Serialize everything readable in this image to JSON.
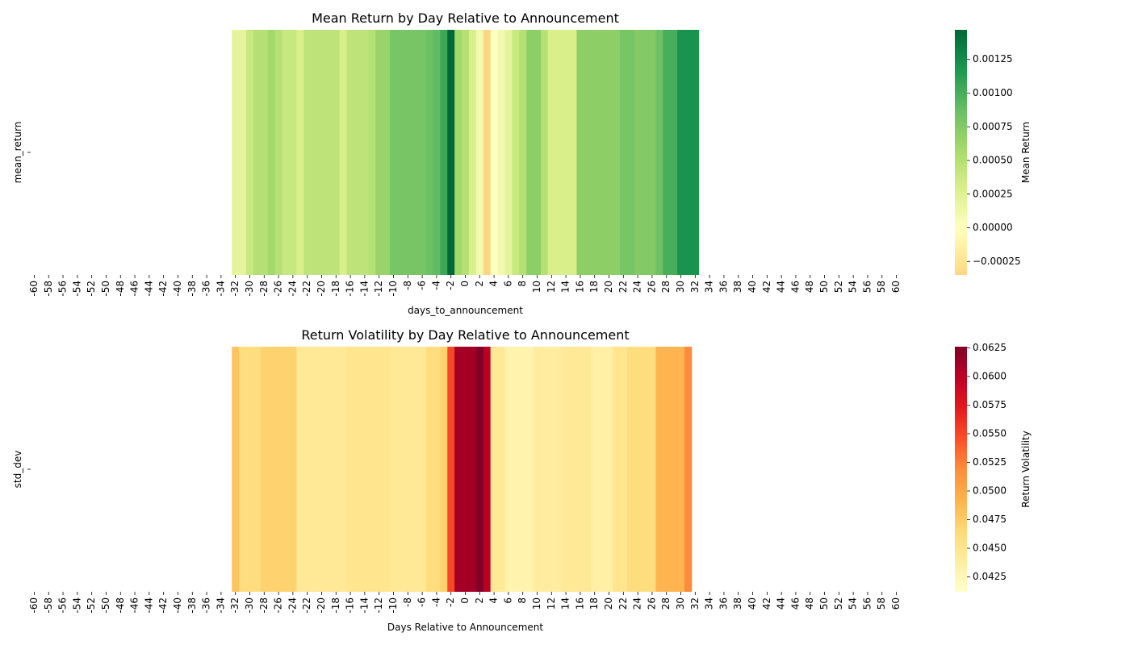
{
  "chart_data": [
    {
      "type": "heatmap",
      "title": "Mean Return by Day Relative to Announcement",
      "xlabel": "days_to_announcement",
      "ylabel": "mean_return",
      "colorbar_label": "Mean Return",
      "cmap": "RdYlGn",
      "center": 0,
      "categories": [
        -60,
        null,
        -58,
        null,
        -56,
        null,
        -54,
        null,
        -52,
        null,
        -50,
        null,
        -48,
        null,
        -46,
        null,
        -44,
        null,
        -42,
        null,
        -40,
        null,
        -38,
        null,
        -36,
        null,
        -34,
        null,
        -32,
        null,
        -30,
        null,
        -28,
        null,
        -26,
        null,
        -24,
        null,
        -22,
        null,
        -20,
        null,
        -18,
        null,
        -16,
        null,
        -14,
        null,
        -12,
        null,
        -10,
        null,
        -8,
        null,
        -6,
        null,
        -4,
        null,
        -2,
        null,
        0,
        null,
        2,
        null,
        4,
        null,
        6,
        null,
        8,
        null,
        10,
        null,
        12,
        null,
        14,
        null,
        16,
        null,
        18,
        null,
        20,
        null,
        22,
        null,
        24,
        null,
        26,
        null,
        28,
        null,
        30,
        null,
        32,
        null,
        34,
        null,
        36,
        null,
        38,
        null,
        40,
        null,
        42,
        null,
        44,
        null,
        46,
        null,
        48,
        null,
        50,
        null,
        52,
        null,
        54,
        null,
        56,
        null,
        58,
        null,
        60
      ],
      "values": [
        null,
        null,
        null,
        null,
        null,
        null,
        null,
        null,
        null,
        null,
        null,
        null,
        null,
        null,
        null,
        null,
        null,
        null,
        null,
        null,
        null,
        null,
        null,
        null,
        null,
        null,
        null,
        null,
        0.0002,
        0.0002,
        0.0004,
        0.0005,
        0.0005,
        0.0006,
        0.0005,
        0.0004,
        0.0004,
        0.0003,
        0.00045,
        0.00045,
        0.00045,
        0.00045,
        0.00045,
        0.0003,
        0.00045,
        0.00045,
        0.00045,
        0.0005,
        0.00065,
        0.00065,
        0.0008,
        0.0008,
        0.0008,
        0.0008,
        0.0008,
        0.00085,
        0.0009,
        0.00105,
        0.00147,
        0.0006,
        0.0005,
        0.0003,
        0.0001,
        -0.00035,
        0.0,
        0.0001,
        0.0002,
        0.0004,
        0.0005,
        0.0007,
        0.0007,
        0.0005,
        0.0003,
        0.0003,
        0.0003,
        0.0003,
        0.0007,
        0.0007,
        0.0007,
        0.0007,
        0.0007,
        0.0007,
        0.0008,
        0.0008,
        0.00075,
        0.00075,
        0.00075,
        0.00085,
        0.001,
        0.001,
        0.0012,
        0.0012,
        0.0012,
        null,
        null,
        null,
        null,
        null,
        null,
        null,
        null,
        null,
        null,
        null,
        null,
        null,
        null,
        null,
        null,
        null,
        null,
        null,
        null,
        null,
        null,
        null,
        null,
        null,
        null,
        null,
        null
      ],
      "vlim": [
        -0.00035,
        0.00147
      ],
      "cticks": [
        {
          "value": 0.00125,
          "label": "0.00125"
        },
        {
          "value": 0.001,
          "label": "0.00100"
        },
        {
          "value": 0.00075,
          "label": "0.00075"
        },
        {
          "value": 0.0005,
          "label": "0.00050"
        },
        {
          "value": 0.00025,
          "label": "0.00025"
        },
        {
          "value": 0,
          "label": "0.00000"
        },
        {
          "value": -0.00025,
          "label": "−0.00025"
        }
      ]
    },
    {
      "type": "heatmap",
      "title": "Return Volatility by Day Relative to Announcement",
      "xlabel": "Days Relative to Announcement",
      "ylabel": "std_dev",
      "colorbar_label": "Return Volatility",
      "cmap": "YlOrRd",
      "categories": [
        -60,
        null,
        -58,
        null,
        -56,
        null,
        -54,
        null,
        -52,
        null,
        -50,
        null,
        -48,
        null,
        -46,
        null,
        -44,
        null,
        -42,
        null,
        -40,
        null,
        -38,
        null,
        -36,
        null,
        -34,
        null,
        -32,
        null,
        -30,
        null,
        -28,
        null,
        -26,
        null,
        -24,
        null,
        -22,
        null,
        -20,
        null,
        -18,
        null,
        -16,
        null,
        -14,
        null,
        -12,
        null,
        -10,
        null,
        -8,
        null,
        -6,
        null,
        -4,
        null,
        -2,
        null,
        0,
        null,
        2,
        null,
        4,
        null,
        6,
        null,
        8,
        null,
        10,
        null,
        12,
        null,
        14,
        null,
        16,
        null,
        18,
        null,
        20,
        null,
        22,
        null,
        24,
        null,
        26,
        null,
        28,
        null,
        30,
        null,
        32,
        null,
        34,
        null,
        36,
        null,
        38,
        null,
        40,
        null,
        42,
        null,
        44,
        null,
        46,
        null,
        48,
        null,
        50,
        null,
        52,
        null,
        54,
        null,
        56,
        null,
        58,
        null,
        60
      ],
      "values": [
        null,
        null,
        null,
        null,
        null,
        null,
        null,
        null,
        null,
        null,
        null,
        null,
        null,
        null,
        null,
        null,
        null,
        null,
        null,
        null,
        null,
        null,
        null,
        null,
        null,
        null,
        null,
        null,
        0.048,
        0.046,
        0.046,
        0.046,
        0.047,
        0.047,
        0.047,
        0.047,
        0.047,
        0.0445,
        0.0445,
        0.0445,
        0.0445,
        0.0445,
        0.0445,
        0.0445,
        0.045,
        0.045,
        0.045,
        0.045,
        0.045,
        0.045,
        0.0445,
        0.0445,
        0.0445,
        0.0445,
        0.0445,
        0.046,
        0.046,
        0.047,
        0.055,
        0.061,
        0.061,
        0.061,
        0.0626,
        0.06,
        0.0445,
        0.0445,
        0.043,
        0.043,
        0.043,
        0.043,
        0.044,
        0.044,
        0.044,
        0.044,
        0.0445,
        0.0445,
        0.0445,
        0.0445,
        0.0435,
        0.0435,
        0.0435,
        0.045,
        0.045,
        0.046,
        0.046,
        0.046,
        0.046,
        0.049,
        0.049,
        0.049,
        0.049,
        0.052,
        null,
        null,
        null,
        null,
        null,
        null,
        null,
        null,
        null,
        null,
        null,
        null,
        null,
        null,
        null,
        null,
        null,
        null,
        null,
        null,
        null,
        null,
        null,
        null,
        null,
        null,
        null,
        null,
        null
      ],
      "vlim": [
        0.0412,
        0.0626
      ],
      "cticks": [
        {
          "value": 0.0625,
          "label": "0.0625"
        },
        {
          "value": 0.06,
          "label": "0.0600"
        },
        {
          "value": 0.0575,
          "label": "0.0575"
        },
        {
          "value": 0.055,
          "label": "0.0550"
        },
        {
          "value": 0.0525,
          "label": "0.0525"
        },
        {
          "value": 0.05,
          "label": "0.0500"
        },
        {
          "value": 0.0475,
          "label": "0.0475"
        },
        {
          "value": 0.045,
          "label": "0.0450"
        },
        {
          "value": 0.0425,
          "label": "0.0425"
        }
      ]
    }
  ]
}
